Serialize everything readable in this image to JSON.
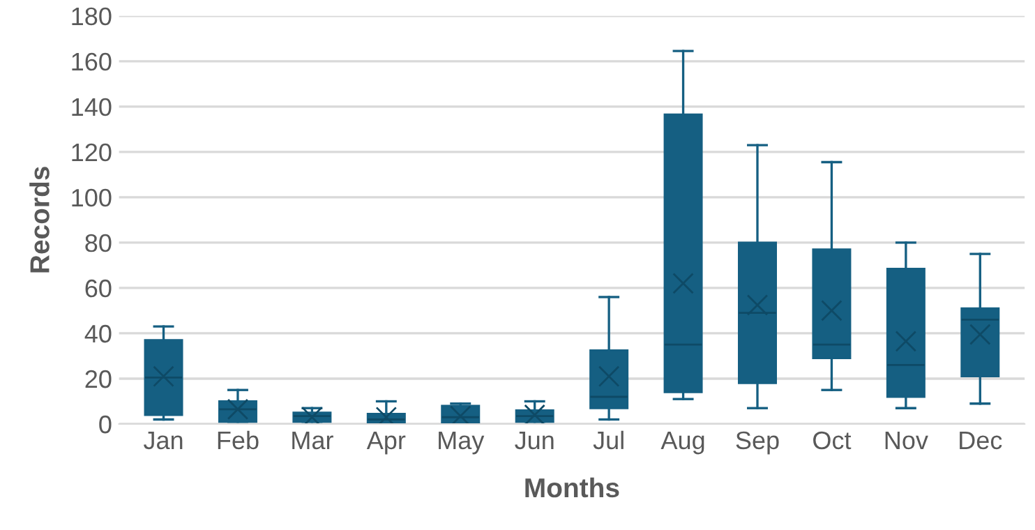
{
  "chart_data": {
    "type": "box",
    "xlabel": "Months",
    "ylabel": "Records",
    "categories": [
      "Jan",
      "Feb",
      "Mar",
      "Apr",
      "May",
      "Jun",
      "Jul",
      "Aug",
      "Sep",
      "Oct",
      "Nov",
      "Dec"
    ],
    "color": "#155f82",
    "ylim": [
      0,
      180
    ],
    "yticks": [
      0,
      20,
      40,
      60,
      80,
      100,
      120,
      140,
      160,
      180
    ],
    "grid": "y",
    "boxes": [
      {
        "low": 2,
        "q1": 4,
        "median": 20.5,
        "q3": 37,
        "high": 43,
        "mean": 21
      },
      {
        "low": 1,
        "q1": 1,
        "median": 6.5,
        "q3": 10,
        "high": 15,
        "mean": 6.5
      },
      {
        "low": 1,
        "q1": 1,
        "median": 3.5,
        "q3": 5,
        "high": 7,
        "mean": 3
      },
      {
        "low": 0,
        "q1": 0,
        "median": 2,
        "q3": 4.5,
        "high": 10,
        "mean": 3
      },
      {
        "low": 0,
        "q1": 0,
        "median": 3,
        "q3": 8,
        "high": 9,
        "mean": 3.5
      },
      {
        "low": 1,
        "q1": 1,
        "median": 3.5,
        "q3": 6,
        "high": 10,
        "mean": 4
      },
      {
        "low": 2,
        "q1": 7,
        "median": 12,
        "q3": 32.5,
        "high": 56,
        "mean": 21
      },
      {
        "low": 11,
        "q1": 14,
        "median": 35,
        "q3": 136.5,
        "high": 164.5,
        "mean": 62
      },
      {
        "low": 7,
        "q1": 18,
        "median": 49,
        "q3": 80,
        "high": 123,
        "mean": 52.5
      },
      {
        "low": 15,
        "q1": 29,
        "median": 35,
        "q3": 77,
        "high": 115.5,
        "mean": 50
      },
      {
        "low": 7,
        "q1": 12,
        "median": 26,
        "q3": 68.5,
        "high": 80,
        "mean": 36.5
      },
      {
        "low": 9,
        "q1": 21,
        "median": 46,
        "q3": 51,
        "high": 75,
        "mean": 39.5
      }
    ]
  }
}
